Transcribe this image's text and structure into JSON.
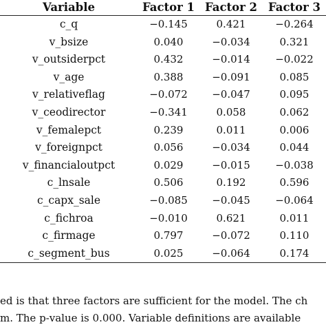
{
  "table": {
    "headers": [
      "Variable",
      "Factor 1",
      "Factor 2",
      "Factor 3"
    ],
    "rows": [
      [
        "c_q",
        "−0.145",
        "0.421",
        "−0.264"
      ],
      [
        "v_bsize",
        "0.040",
        "−0.034",
        "0.321"
      ],
      [
        "v_outsiderpct",
        "0.432",
        "−0.014",
        "−0.022"
      ],
      [
        "v_age",
        "0.388",
        "−0.091",
        "0.085"
      ],
      [
        "v_relativeflag",
        "−0.072",
        "−0.047",
        "0.095"
      ],
      [
        "v_ceodirector",
        "−0.341",
        "0.058",
        "0.062"
      ],
      [
        "v_femalepct",
        "0.239",
        "0.011",
        "0.006"
      ],
      [
        "v_foreignpct",
        "0.056",
        "−0.034",
        "0.044"
      ],
      [
        "v_financialoutpct",
        "0.029",
        "−0.015",
        "−0.038"
      ],
      [
        "c_lnsale",
        "0.506",
        "0.192",
        "0.596"
      ],
      [
        "c_capx_sale",
        "−0.085",
        "−0.045",
        "−0.064"
      ],
      [
        "c_fichroa",
        "−0.010",
        "0.621",
        "0.011"
      ],
      [
        "c_firmage",
        "0.797",
        "−0.072",
        "0.110"
      ],
      [
        "c_segment_bus",
        "0.025",
        "−0.064",
        "0.174"
      ]
    ]
  },
  "note": {
    "line1": "ed is that three factors are sufficient for the model. The ch",
    "line2": "m. The p-value is 0.000. Variable definitions are available"
  }
}
